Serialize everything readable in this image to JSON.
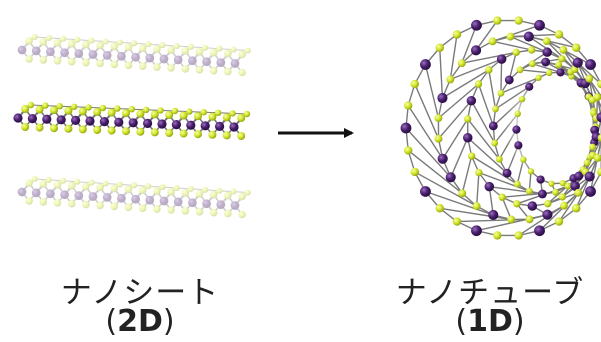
{
  "left": {
    "title": "ナノシート",
    "dimension_open": "(",
    "dimension": "2D",
    "dimension_close": ")"
  },
  "right": {
    "title": "ナノチューブ",
    "dimension_open": "(",
    "dimension": "1D",
    "dimension_close": ")"
  },
  "colors": {
    "metal_atom": "#4a1f6e",
    "chalcogen_atom": "#d7ea2c",
    "bond": "#7a7a7a",
    "arrow": "#111111",
    "text": "#222222"
  }
}
